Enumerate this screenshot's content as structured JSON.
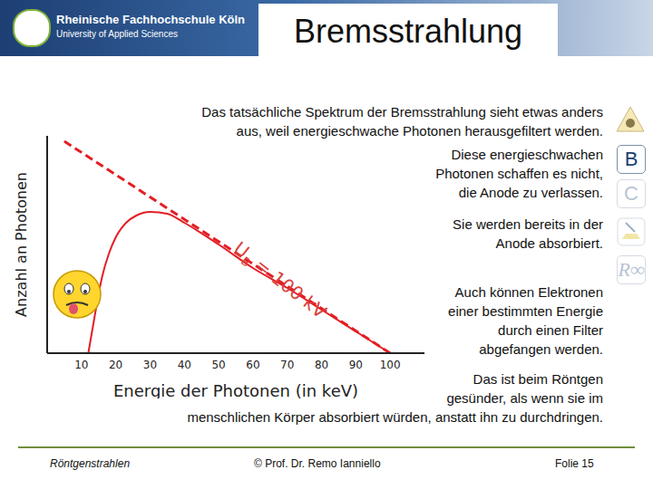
{
  "slide": {
    "header": {
      "institution": "Rheinische Fachhochschule Köln",
      "subtitle": "University of Applied Sciences",
      "title": "Bremsstrahlung"
    },
    "paragraphs": [
      [
        "Das tatsächliche Spektrum der Bremsstrahlung sieht etwas anders",
        "aus, weil energieschwache Photonen herausgefiltert werden."
      ],
      [
        "Diese energieschwachen",
        "Photonen schaffen es nicht,",
        "die Anode zu verlassen."
      ],
      [
        "Sie werden bereits in der",
        "Anode absorbiert."
      ],
      [
        "Auch können Elektronen",
        "einer bestimmten Energie",
        "durch einen Filter",
        "abgefangen werden."
      ],
      [
        "Das ist beim Röntgen",
        "gesünder, als wenn sie im",
        "menschlichen Körper absorbiert würden, anstatt ihn zu durchdringen."
      ]
    ],
    "sidebar": [
      "B",
      "C",
      "R∞"
    ],
    "footer": {
      "left": "Röntgenstrahlen",
      "center": "© Prof. Dr. Remo Ianniello",
      "right": "Folie 15"
    }
  },
  "chart_data": {
    "type": "line",
    "x_label": "Energie der Photonen (in keV)",
    "y_label": "Anzahl an Photonen",
    "annotation": {
      "text": "U",
      "subscript": "B",
      "suffix": "= 100 kV"
    },
    "xlim": [
      0,
      110
    ],
    "xticks": [
      10,
      20,
      30,
      40,
      50,
      60,
      70,
      80,
      90,
      100
    ],
    "ylim": [
      0,
      120
    ],
    "yticks": [],
    "tick_labels": "x",
    "grid": false,
    "series": [
      {
        "x": [
          12,
          14,
          16,
          18,
          20,
          23,
          26,
          30,
          35,
          40,
          50,
          60,
          70,
          80,
          90,
          100
        ],
        "values": [
          0,
          22,
          42,
          55,
          64,
          72,
          76,
          78,
          77,
          72,
          60,
          47,
          36,
          24,
          12,
          0
        ],
        "color": "#e31e24",
        "line_style": "solid"
      },
      {
        "x": [
          5,
          100
        ],
        "values": [
          117,
          0
        ],
        "color": "#e31e24",
        "line_style": "dashed"
      }
    ]
  }
}
